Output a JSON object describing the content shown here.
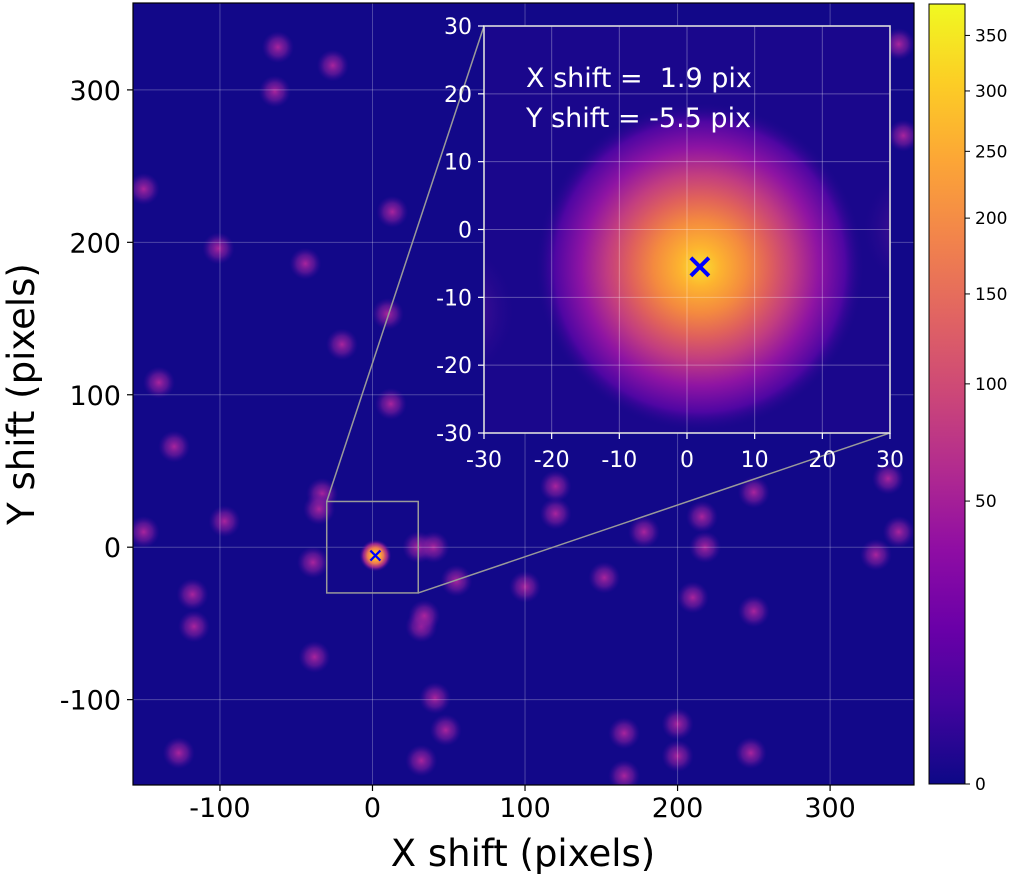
{
  "chart_data": [
    {
      "type": "heatmap",
      "panel": "main",
      "title": "",
      "xlabel": "X shift (pixels)",
      "ylabel": "Y shift (pixels)",
      "xlim": [
        -157,
        355
      ],
      "ylim": [
        -156,
        357
      ],
      "xticks": [
        -100,
        0,
        100,
        200,
        300
      ],
      "xtick_labels": [
        "-100",
        "0",
        "100",
        "200",
        "300"
      ],
      "yticks": [
        -100,
        0,
        100,
        200,
        300
      ],
      "ytick_labels": [
        "-100",
        "0",
        "100",
        "200",
        "300"
      ],
      "grid": true,
      "peak": {
        "x": 1.9,
        "y": -5.5,
        "value": 380
      },
      "zoom_box": {
        "xmin": -30,
        "xmax": 30,
        "ymin": -30,
        "ymax": 30
      },
      "secondary_peaks": [
        [
          -62,
          328
        ],
        [
          -64,
          299
        ],
        [
          -26,
          316
        ],
        [
          -150,
          235
        ],
        [
          -101,
          196
        ],
        [
          -44,
          186
        ],
        [
          13,
          220
        ],
        [
          -20,
          133
        ],
        [
          10,
          153
        ],
        [
          -140,
          108
        ],
        [
          12,
          94
        ],
        [
          -130,
          66
        ],
        [
          -150,
          10
        ],
        [
          -97,
          17
        ],
        [
          -33,
          35
        ],
        [
          -35,
          25
        ],
        [
          -118,
          -31
        ],
        [
          -117,
          -52
        ],
        [
          -39,
          -10
        ],
        [
          30,
          0
        ],
        [
          40,
          0
        ],
        [
          55,
          -22
        ],
        [
          -38,
          -72
        ],
        [
          32,
          -52
        ],
        [
          34,
          -45
        ],
        [
          41,
          -99
        ],
        [
          48,
          -120
        ],
        [
          -127,
          -135
        ],
        [
          32,
          -140
        ],
        [
          100,
          -26
        ],
        [
          120,
          40
        ],
        [
          120,
          22
        ],
        [
          152,
          -20
        ],
        [
          178,
          10
        ],
        [
          210,
          -33
        ],
        [
          216,
          20
        ],
        [
          218,
          0
        ],
        [
          250,
          36
        ],
        [
          250,
          -42
        ],
        [
          200,
          -116
        ],
        [
          165,
          -122
        ],
        [
          200,
          -137
        ],
        [
          248,
          -135
        ],
        [
          165,
          -150
        ],
        [
          330,
          -5
        ],
        [
          338,
          45
        ],
        [
          345,
          10
        ],
        [
          348,
          270
        ],
        [
          345,
          330
        ]
      ]
    },
    {
      "type": "heatmap",
      "panel": "inset",
      "xlim": [
        -30,
        30
      ],
      "ylim": [
        -30,
        30
      ],
      "xticks": [
        -30,
        -20,
        -10,
        0,
        10,
        20,
        30
      ],
      "xtick_labels": [
        "-30",
        "-20",
        "-10",
        "0",
        "10",
        "20",
        "30"
      ],
      "yticks": [
        -30,
        -20,
        -10,
        0,
        10,
        20,
        30
      ],
      "ytick_labels": [
        "-30",
        "-20",
        "-10",
        "0",
        "10",
        "20",
        "30"
      ],
      "grid": true,
      "annotations": [
        "X shift =  1.9 pix",
        "Y shift = -5.5 pix"
      ],
      "peak": {
        "x": 1.9,
        "y": -5.5,
        "value": 380
      }
    },
    {
      "type": "colorbar",
      "colormap": "plasma",
      "range": [
        0,
        380
      ],
      "scale": "sqrt",
      "ticks": [
        0,
        50,
        100,
        150,
        200,
        250,
        300,
        350
      ],
      "tick_labels": [
        "0",
        "50",
        "100",
        "150",
        "200",
        "250",
        "300",
        "350"
      ]
    }
  ]
}
